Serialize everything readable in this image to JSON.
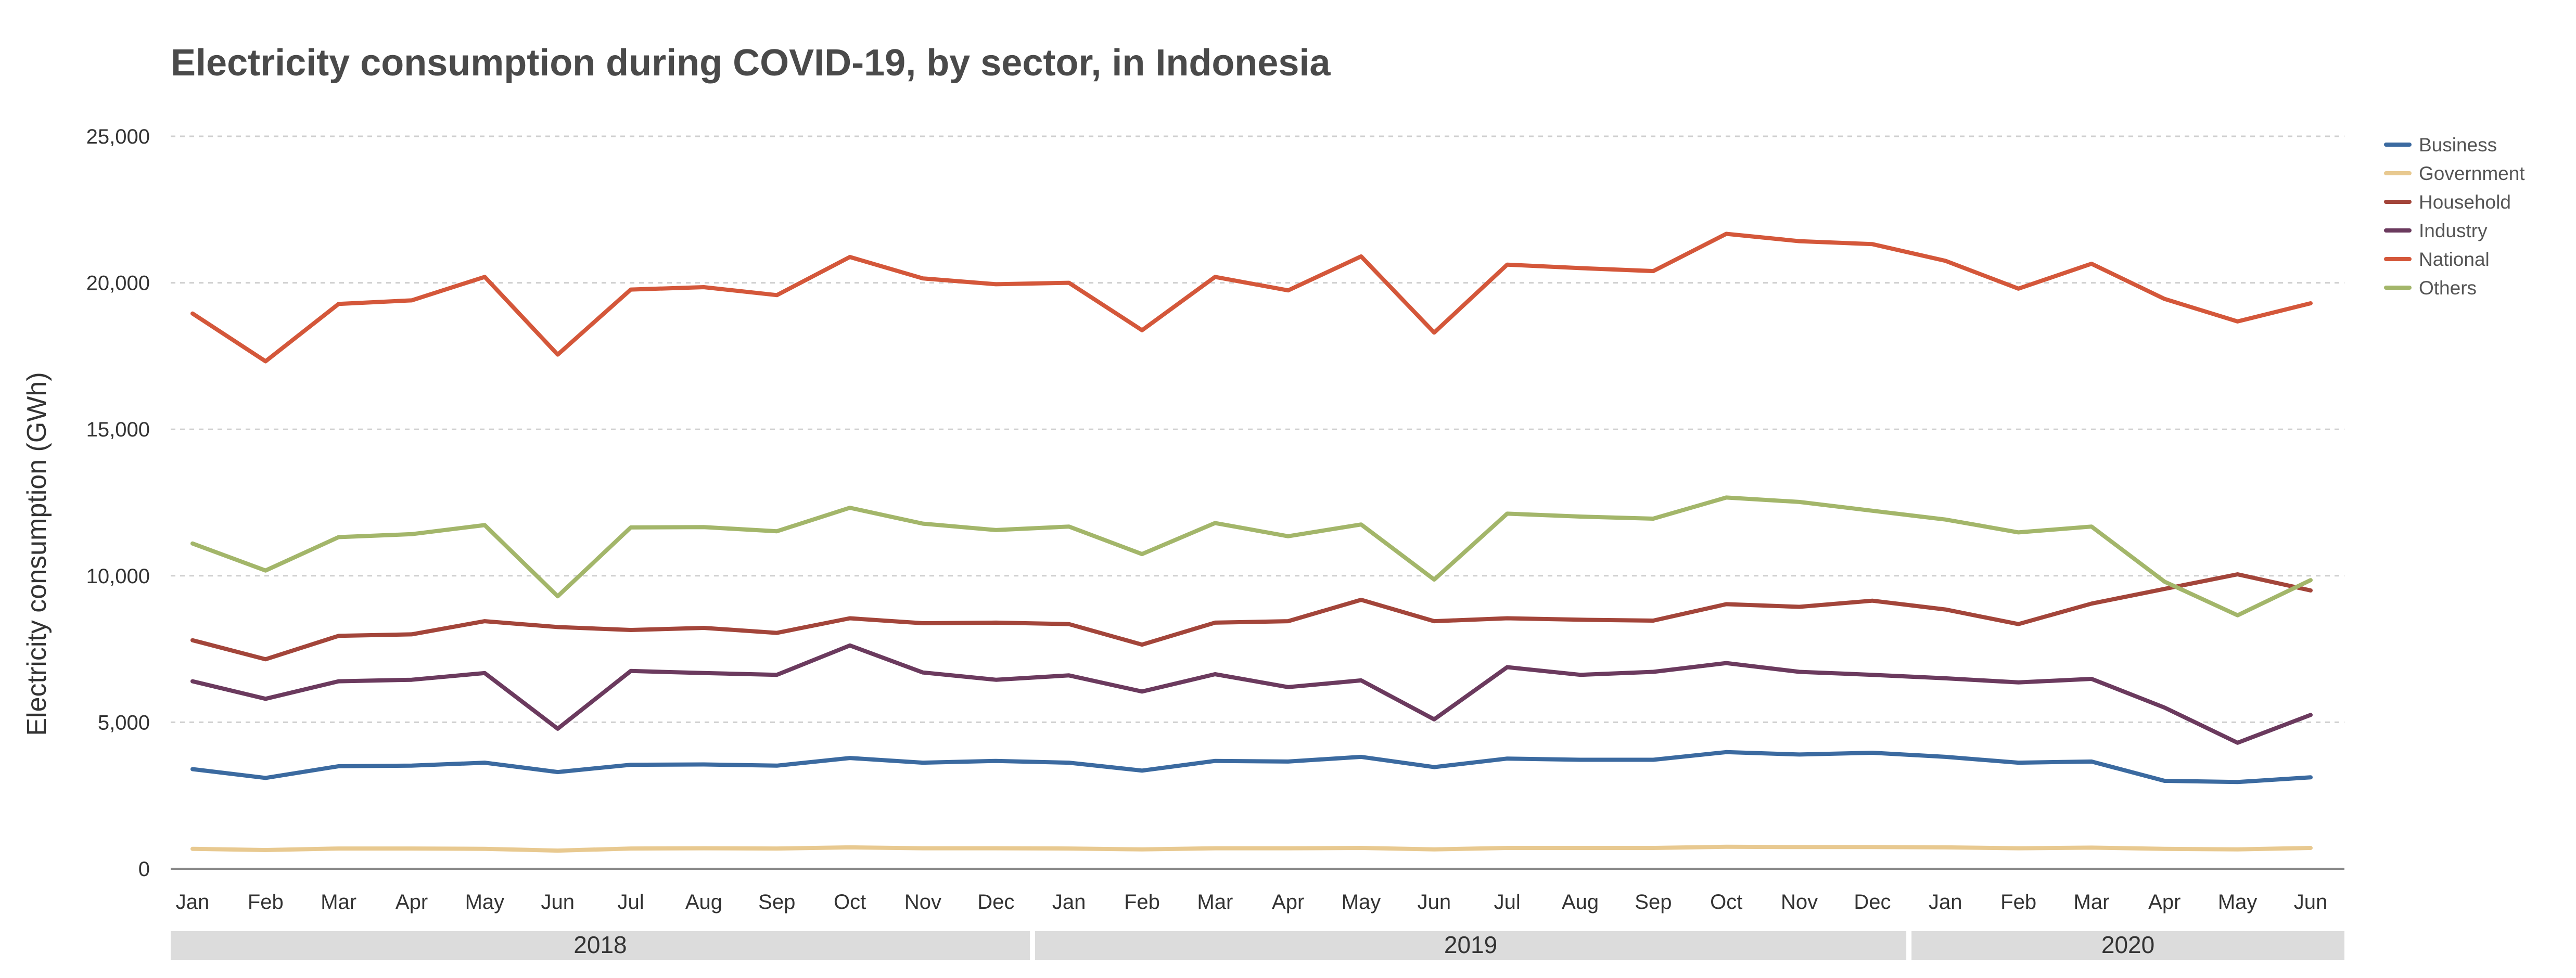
{
  "chart_data": {
    "type": "line",
    "title": "Electricity consumption during COVID-19, by sector, in Indonesia",
    "xlabel": "",
    "ylabel": "Electricity consumption (GWh)",
    "ylim": [
      0,
      25000
    ],
    "yticks": [
      0,
      5000,
      10000,
      15000,
      20000,
      25000
    ],
    "ytick_labels": [
      "0",
      "5,000",
      "10,000",
      "15,000",
      "20,000",
      "25,000"
    ],
    "grid": "horizontal dashed",
    "legend_position": "top-right",
    "categories": [
      "Jan",
      "Feb",
      "Mar",
      "Apr",
      "May",
      "Jun",
      "Jul",
      "Aug",
      "Sep",
      "Oct",
      "Nov",
      "Dec",
      "Jan",
      "Feb",
      "Mar",
      "Apr",
      "May",
      "Jun",
      "Jul",
      "Aug",
      "Sep",
      "Oct",
      "Nov",
      "Dec",
      "Jan",
      "Feb",
      "Mar",
      "Apr",
      "May",
      "Jun"
    ],
    "year_groups": [
      {
        "label": "2018",
        "start": 0,
        "end": 11
      },
      {
        "label": "2019",
        "start": 12,
        "end": 23
      },
      {
        "label": "2020",
        "start": 24,
        "end": 29
      }
    ],
    "series": [
      {
        "name": "Business",
        "color": "#3b6aa0",
        "values": [
          3400,
          3100,
          3500,
          3520,
          3620,
          3300,
          3550,
          3560,
          3520,
          3780,
          3620,
          3680,
          3620,
          3350,
          3680,
          3660,
          3820,
          3470,
          3760,
          3720,
          3720,
          3980,
          3900,
          3960,
          3820,
          3620,
          3660,
          3000,
          2960,
          3120
        ]
      },
      {
        "name": "Government",
        "color": "#e8c990",
        "values": [
          680,
          640,
          690,
          690,
          680,
          620,
          690,
          700,
          690,
          730,
          700,
          700,
          690,
          660,
          700,
          700,
          710,
          660,
          710,
          710,
          710,
          750,
          740,
          740,
          730,
          700,
          720,
          680,
          660,
          710
        ]
      },
      {
        "name": "Household",
        "color": "#a3453a",
        "values": [
          7800,
          7150,
          7950,
          8000,
          8450,
          8250,
          8150,
          8220,
          8050,
          8550,
          8380,
          8400,
          8350,
          7650,
          8400,
          8450,
          9180,
          8450,
          8550,
          8500,
          8470,
          9030,
          8940,
          9150,
          8850,
          8350,
          9050,
          9550,
          10050,
          9500
        ]
      },
      {
        "name": "Industry",
        "color": "#6b3a5e",
        "values": [
          6400,
          5800,
          6400,
          6450,
          6680,
          4780,
          6750,
          6680,
          6620,
          7620,
          6700,
          6450,
          6600,
          6050,
          6640,
          6200,
          6430,
          5100,
          6880,
          6620,
          6720,
          7020,
          6720,
          6620,
          6500,
          6360,
          6480,
          5500,
          4300,
          5250
        ]
      },
      {
        "name": "National",
        "color": "#d4573a",
        "values": [
          18950,
          17320,
          19280,
          19400,
          20200,
          17550,
          19770,
          19850,
          19580,
          20880,
          20150,
          19950,
          20000,
          18380,
          20200,
          19740,
          20900,
          18300,
          20620,
          20500,
          20400,
          21670,
          21420,
          21320,
          20750,
          19800,
          20650,
          19450,
          18680,
          19300
        ]
      },
      {
        "name": "Others",
        "color": "#a3b66a",
        "values": [
          11100,
          10180,
          11320,
          11420,
          11730,
          9300,
          11650,
          11660,
          11520,
          12320,
          11780,
          11560,
          11680,
          10740,
          11800,
          11350,
          11750,
          9870,
          12120,
          12020,
          11950,
          12670,
          12520,
          12220,
          11920,
          11480,
          11680,
          9800,
          8650,
          9850
        ]
      }
    ]
  }
}
